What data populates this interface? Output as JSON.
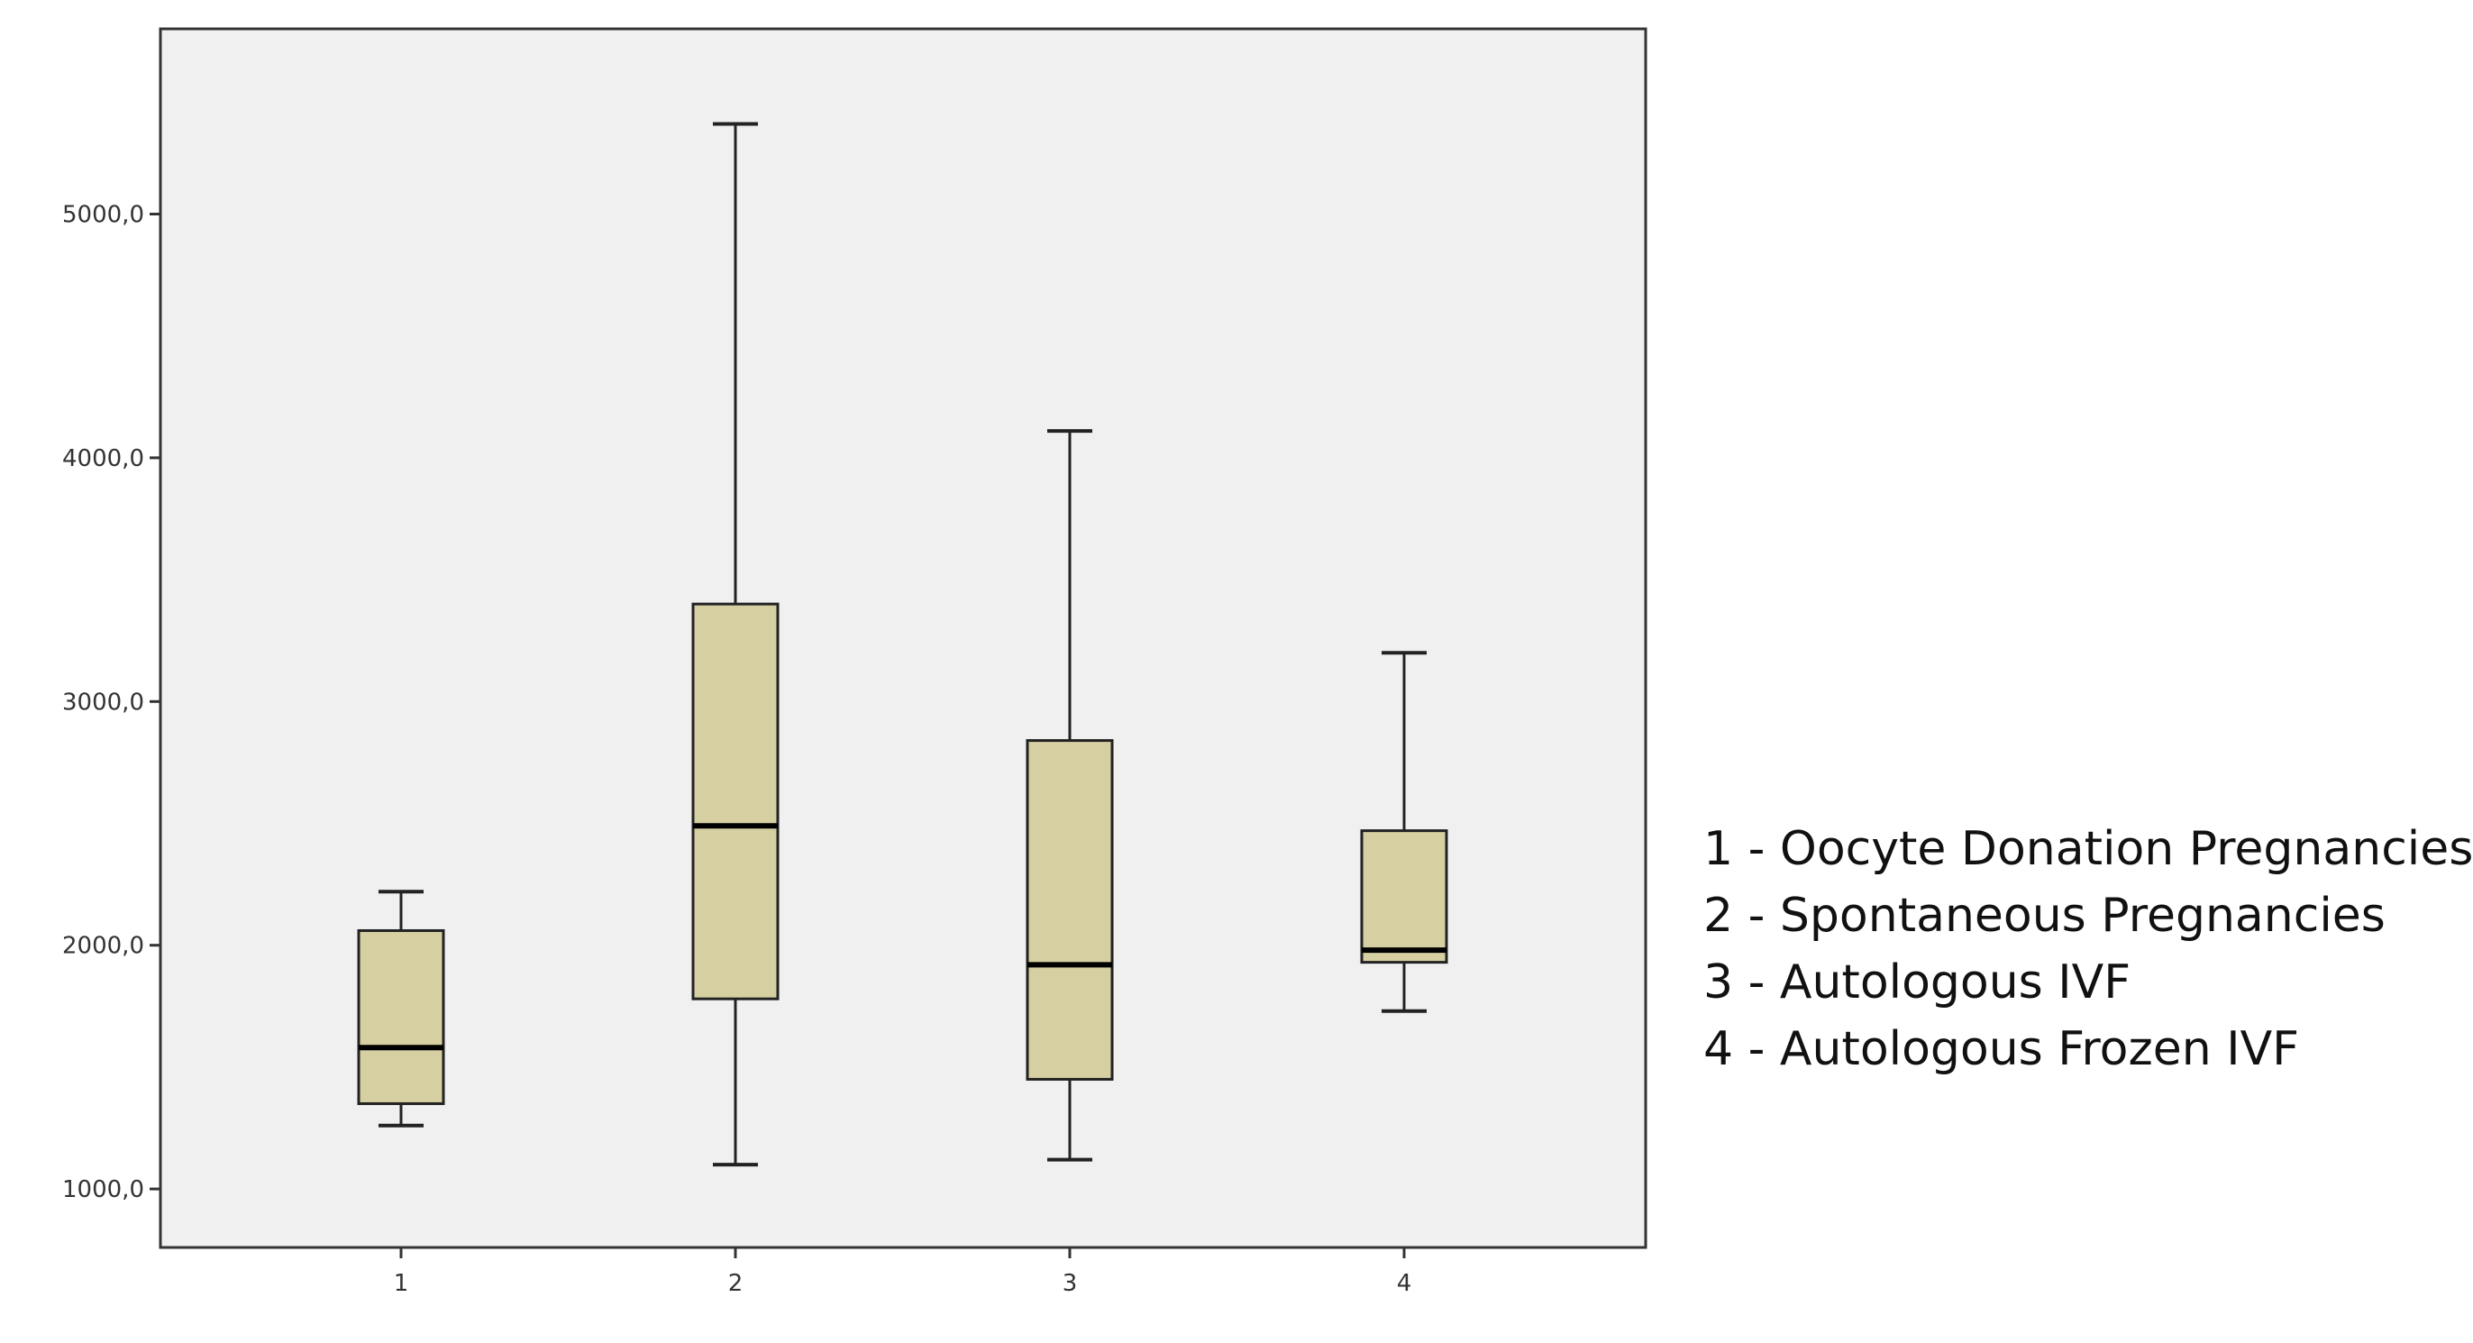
{
  "chart_data": {
    "type": "box",
    "categories": [
      "1",
      "2",
      "3",
      "4"
    ],
    "yticks": [
      {
        "value": 1000,
        "label": "1000,0"
      },
      {
        "value": 2000,
        "label": "2000,0"
      },
      {
        "value": 3000,
        "label": "3000,0"
      },
      {
        "value": 4000,
        "label": "4000,0"
      },
      {
        "value": 5000,
        "label": "5000,0"
      }
    ],
    "ylim": [
      760,
      5760
    ],
    "boxes": [
      {
        "category": "1",
        "min": 1260,
        "q1": 1350,
        "median": 1580,
        "q3": 2060,
        "max": 2220
      },
      {
        "category": "2",
        "min": 1100,
        "q1": 1780,
        "median": 2490,
        "q3": 3400,
        "max": 5370
      },
      {
        "category": "3",
        "min": 1120,
        "q1": 1450,
        "median": 1920,
        "q3": 2840,
        "max": 4110
      },
      {
        "category": "4",
        "min": 1730,
        "q1": 1930,
        "median": 1980,
        "q3": 2470,
        "max": 3200
      }
    ],
    "box_color": "#d6cfa2",
    "background_color": "#f0f0f0",
    "grid": false,
    "legend": [
      "1 - Oocyte Donation Pregnancies",
      "2 - Spontaneous Pregnancies",
      "3 - Autologous IVF",
      "4 - Autologous Frozen IVF"
    ],
    "legend_position": "right"
  }
}
